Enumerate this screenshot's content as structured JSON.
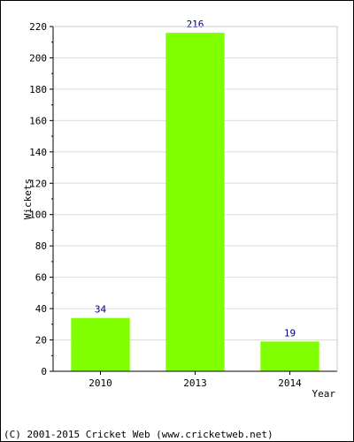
{
  "chart_data": {
    "type": "bar",
    "categories": [
      "2010",
      "2013",
      "2014"
    ],
    "values": [
      34,
      216,
      19
    ],
    "title": "",
    "xlabel": "Year",
    "ylabel": "Wickets",
    "ylim": [
      0,
      220
    ],
    "yticks": [
      0,
      20,
      40,
      60,
      80,
      100,
      120,
      140,
      160,
      180,
      200,
      220
    ],
    "grid": true,
    "bar_color": "#80ff00",
    "label_color": "#000080"
  },
  "footer": {
    "text": "(C) 2001-2015 Cricket Web (www.cricketweb.net)"
  }
}
